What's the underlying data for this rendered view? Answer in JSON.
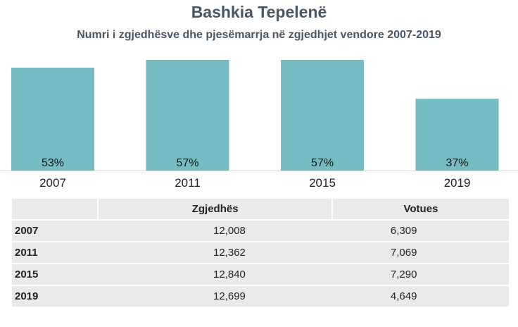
{
  "title": "Bashkia Tepelenë",
  "subtitle": "Numri i zgjedhësve dhe pjesëmarrja në zgjedhjet vendore 2007-2019",
  "colors": {
    "bar": "#76bcc4",
    "title": "#4a5763",
    "row": "#eaeaea"
  },
  "chart_data": {
    "type": "bar",
    "categories": [
      "2007",
      "2011",
      "2015",
      "2019"
    ],
    "values": [
      53,
      57,
      57,
      37
    ],
    "value_labels": [
      "53%",
      "57%",
      "57%",
      "37%"
    ],
    "ylim": [
      0,
      57
    ]
  },
  "table": {
    "headers": [
      "",
      "Zgjedhës",
      "Votues"
    ],
    "rows": [
      [
        "2007",
        "12,008",
        "6,309"
      ],
      [
        "2011",
        "12,362",
        "7,069"
      ],
      [
        "2015",
        "12,840",
        "7,290"
      ],
      [
        "2019",
        "12,699",
        "4,649"
      ]
    ]
  }
}
